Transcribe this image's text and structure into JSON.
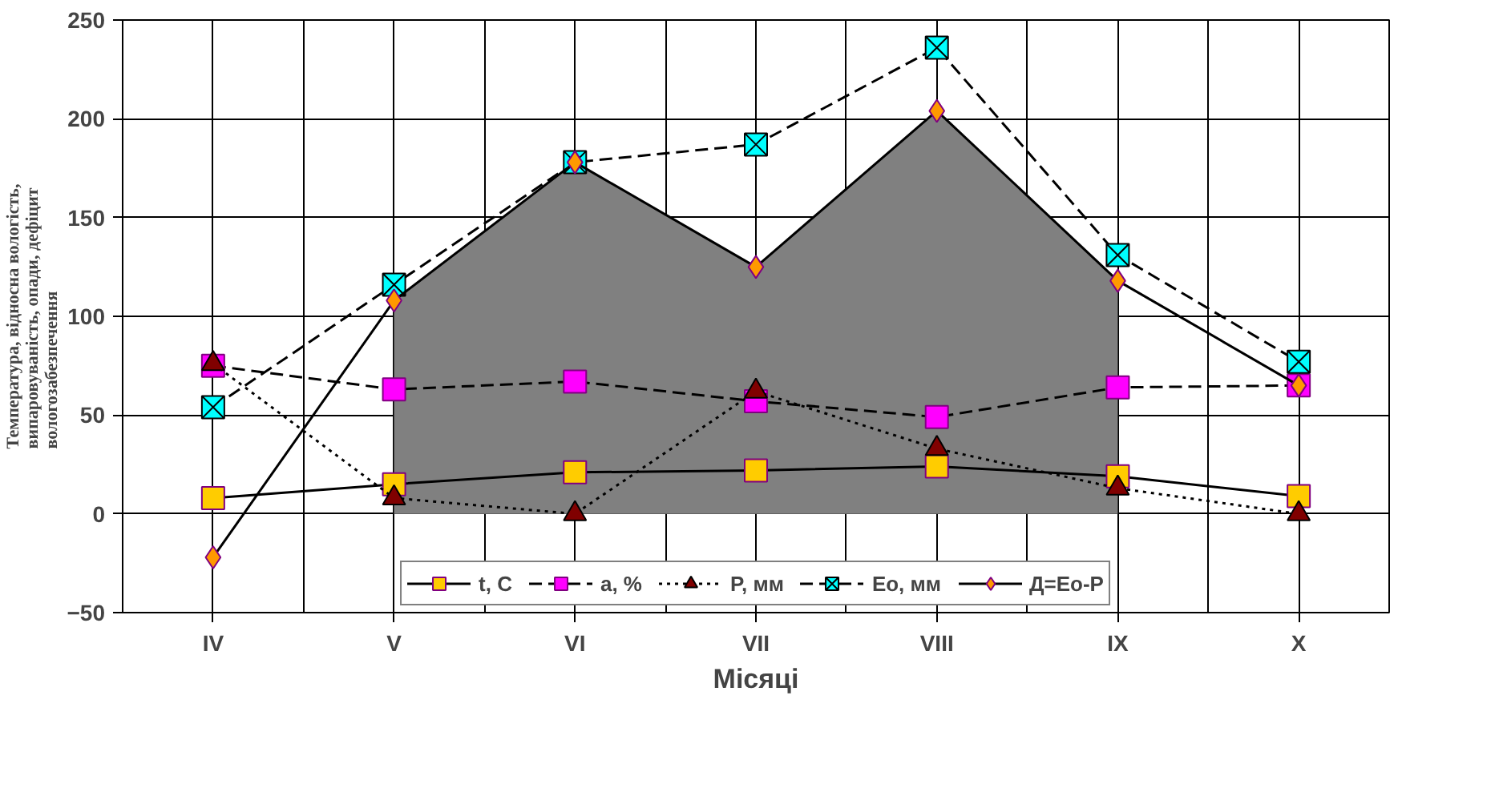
{
  "chart_data": {
    "type": "line",
    "xlabel": "Місяці",
    "ylabel": "Температура, відносна вологість,\nвипаровуваність, опади, дефіцит\nвологозабезпечення",
    "categories": [
      "IV",
      "V",
      "VI",
      "VII",
      "VIII",
      "IX",
      "X"
    ],
    "ylim": [
      -50,
      250
    ],
    "yticks": [
      -50,
      0,
      50,
      100,
      150,
      200,
      250
    ],
    "grid": true,
    "legend": "bottom",
    "series": [
      {
        "type": "area",
        "color": "#808080",
        "values": [
          null,
          108,
          178,
          125,
          204,
          118,
          null
        ]
      },
      {
        "name": "t, C",
        "color": "#ffcc00",
        "values": [
          8,
          15,
          21,
          22,
          24,
          19,
          9
        ],
        "marker": "square",
        "line_style": "solid"
      },
      {
        "name": "a, %",
        "color": "#ff00ff",
        "values": [
          75,
          63,
          67,
          57,
          49,
          64,
          65
        ],
        "marker": "square",
        "line_style": "dashed"
      },
      {
        "name": "P, мм",
        "color": "#800000",
        "values": [
          76,
          8,
          0,
          62,
          33,
          13,
          0
        ],
        "marker": "triangle",
        "line_style": "dotted"
      },
      {
        "name": "Eo, мм",
        "color": "#00ffff",
        "values": [
          54,
          116,
          178,
          187,
          236,
          131,
          77
        ],
        "marker": "cross",
        "line_style": "dashed"
      },
      {
        "name": "Д=Eo-P",
        "color": "#ff9900",
        "values": [
          -22,
          108,
          178,
          125,
          204,
          118,
          65
        ],
        "marker": "diamond",
        "line_style": "solid"
      }
    ]
  }
}
